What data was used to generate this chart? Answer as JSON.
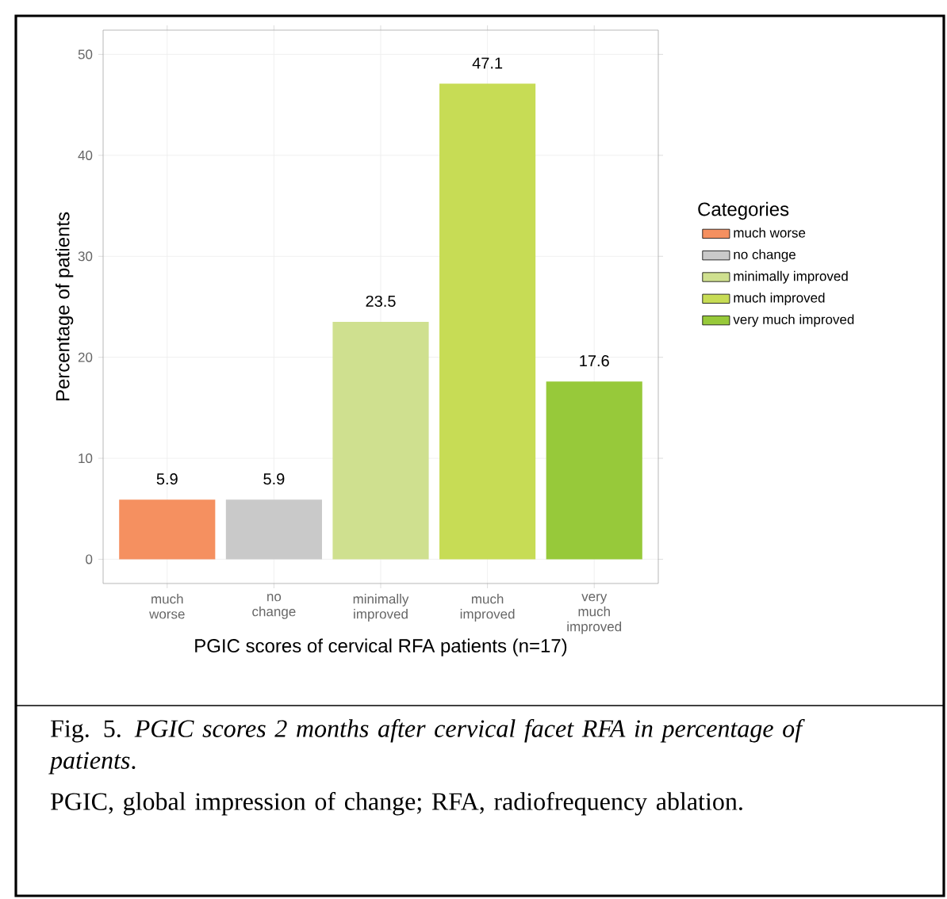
{
  "chart_data": {
    "type": "bar",
    "categories": [
      "much worse",
      "no change",
      "minimally improved",
      "much improved",
      "very much improved"
    ],
    "series": [
      {
        "name": "much worse",
        "color": "#f59060",
        "values": [
          5.9,
          null,
          null,
          null,
          null
        ]
      },
      {
        "name": "no change",
        "color": "#c9c9c9",
        "values": [
          null,
          5.9,
          null,
          null,
          null
        ]
      },
      {
        "name": "minimally improved",
        "color": "#cfe08f",
        "values": [
          null,
          null,
          23.5,
          null,
          null
        ]
      },
      {
        "name": "much improved",
        "color": "#c7dc55",
        "values": [
          null,
          null,
          null,
          47.1,
          null
        ]
      },
      {
        "name": "very much improved",
        "color": "#97c93a",
        "values": [
          null,
          null,
          null,
          null,
          17.6
        ]
      }
    ],
    "data_labels": true,
    "xlabel": "PGIC scores of cervical RFA patients (n=17)",
    "ylabel": "Percentage of patients",
    "legend_title": "Categories",
    "legend": "right",
    "ylim": [
      -2.4,
      52.4
    ],
    "yticks": [
      0,
      10,
      20,
      30,
      40,
      50
    ],
    "grid": true,
    "annotations": [
      "Fig. 5. *PGIC scores 2 months after cervical facet RFA in percentage of patients*.",
      "PGIC, global impression of change; RFA, radiofrequency ablation."
    ]
  }
}
